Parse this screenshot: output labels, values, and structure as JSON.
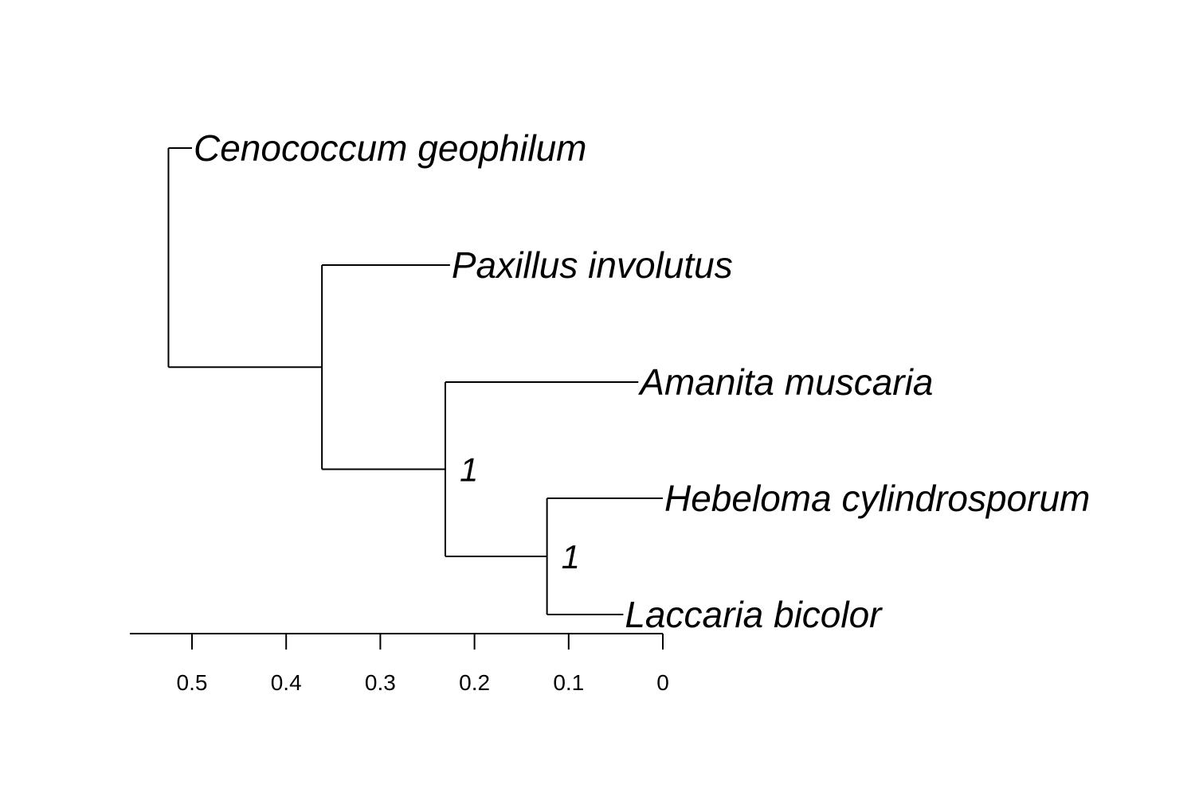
{
  "tree": {
    "leaves": [
      {
        "id": "cg",
        "label": "Cenococcum geophilum",
        "depth": 0.5
      },
      {
        "id": "pi",
        "label": "Paxillus involutus",
        "depth": 0.226
      },
      {
        "id": "am",
        "label": "Amanita muscaria",
        "depth": 0.026
      },
      {
        "id": "hc",
        "label": "Hebeloma cylindrosporum",
        "depth": 0
      },
      {
        "id": "lb",
        "label": "Laccaria bicolor",
        "depth": 0.042
      }
    ],
    "nodes": [
      {
        "id": "root",
        "depth": 0.525,
        "children": [
          "cg",
          "n1"
        ],
        "support": ""
      },
      {
        "id": "n1",
        "depth": 0.362,
        "children": [
          "pi",
          "n2"
        ],
        "support": ""
      },
      {
        "id": "n2",
        "depth": 0.231,
        "children": [
          "am",
          "n3"
        ],
        "support": "1"
      },
      {
        "id": "n3",
        "depth": 0.123,
        "children": [
          "hc",
          "lb"
        ],
        "support": "1"
      }
    ],
    "axis": {
      "ticks": [
        "0.5",
        "0.4",
        "0.3",
        "0.2",
        "0.1",
        "0"
      ],
      "tick_values": [
        0.5,
        0.4,
        0.3,
        0.2,
        0.1,
        0
      ],
      "range": [
        0.566,
        0
      ]
    }
  }
}
